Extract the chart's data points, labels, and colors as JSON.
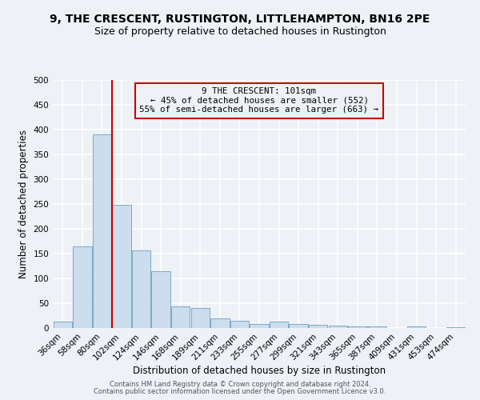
{
  "title": "9, THE CRESCENT, RUSTINGTON, LITTLEHAMPTON, BN16 2PE",
  "subtitle": "Size of property relative to detached houses in Rustington",
  "xlabel": "Distribution of detached houses by size in Rustington",
  "ylabel": "Number of detached properties",
  "bar_labels": [
    "36sqm",
    "58sqm",
    "80sqm",
    "102sqm",
    "124sqm",
    "146sqm",
    "168sqm",
    "189sqm",
    "211sqm",
    "233sqm",
    "255sqm",
    "277sqm",
    "299sqm",
    "321sqm",
    "343sqm",
    "365sqm",
    "387sqm",
    "409sqm",
    "431sqm",
    "453sqm",
    "474sqm"
  ],
  "bar_values": [
    13,
    165,
    390,
    248,
    157,
    115,
    44,
    40,
    20,
    15,
    8,
    13,
    8,
    6,
    5,
    3,
    3,
    0,
    4,
    0,
    1
  ],
  "bar_color": "#ccdded",
  "bar_edge_color": "#7aaac8",
  "vline_color": "#cc0000",
  "annotation_title": "9 THE CRESCENT: 101sqm",
  "annotation_line1": "← 45% of detached houses are smaller (552)",
  "annotation_line2": "55% of semi-detached houses are larger (663) →",
  "annotation_box_color": "#cc0000",
  "ylim": [
    0,
    500
  ],
  "yticks": [
    0,
    50,
    100,
    150,
    200,
    250,
    300,
    350,
    400,
    450,
    500
  ],
  "footer1": "Contains HM Land Registry data © Crown copyright and database right 2024.",
  "footer2": "Contains public sector information licensed under the Open Government Licence v3.0.",
  "bg_color": "#eef2f7",
  "grid_color": "#ffffff",
  "title_fontsize": 10,
  "subtitle_fontsize": 9,
  "axis_label_fontsize": 8.5,
  "tick_fontsize": 7.5,
  "footer_fontsize": 6.0
}
